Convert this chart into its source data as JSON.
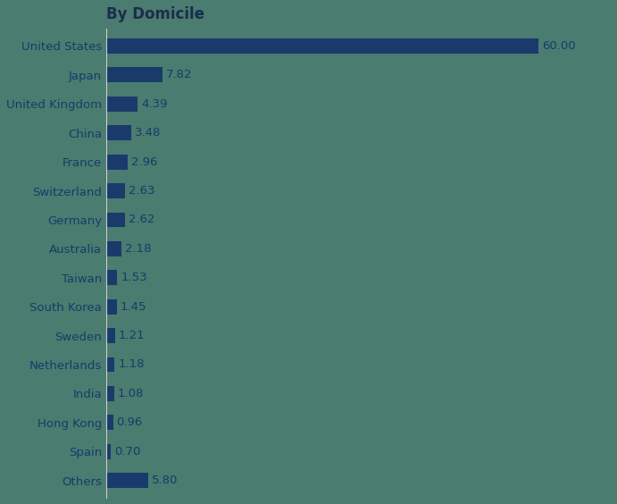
{
  "title": "By Domicile",
  "categories": [
    "United States",
    "Japan",
    "United Kingdom",
    "China",
    "France",
    "Switzerland",
    "Germany",
    "Australia",
    "Taiwan",
    "South Korea",
    "Sweden",
    "Netherlands",
    "India",
    "Hong Kong",
    "Spain",
    "Others"
  ],
  "values": [
    60.0,
    7.82,
    4.39,
    3.48,
    2.96,
    2.63,
    2.62,
    2.18,
    1.53,
    1.45,
    1.21,
    1.18,
    1.08,
    0.96,
    0.7,
    5.8
  ],
  "bar_color": "#1a3a6b",
  "label_color": "#1a3a6b",
  "title_color": "#1a2d4e",
  "background_color": "#4a7c6f",
  "bar_height": 0.52,
  "xlim": [
    0,
    70
  ],
  "title_fontsize": 12,
  "value_fontsize": 9.5,
  "tick_fontsize": 9.5
}
